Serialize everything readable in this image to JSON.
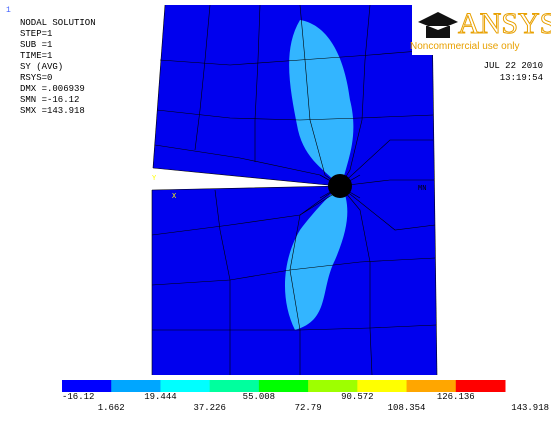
{
  "info": {
    "plot_number": "1",
    "lines": [
      "NODAL SOLUTION",
      "STEP=1",
      "SUB =1",
      "TIME=1",
      "SY       (AVG)",
      "RSYS=0",
      "DMX =.006939",
      "SMN =-16.12",
      "SMX =143.918"
    ]
  },
  "logo": {
    "brand": "ANSYS",
    "note": "Noncommercial use only"
  },
  "timestamp": {
    "date": "JUL 22 2010",
    "time": "13:19:54"
  },
  "markers": {
    "min": "MN",
    "y_axis": "Y",
    "x_axis": "X"
  },
  "legend": {
    "colors": [
      "#0000ff",
      "#00a6ff",
      "#00ffff",
      "#00ff9e",
      "#00ff00",
      "#9eff00",
      "#ffff00",
      "#ffa600",
      "#ff0000"
    ],
    "labels": [
      "-16.12",
      "1.662",
      "19.444",
      "37.226",
      "55.008",
      "72.79",
      "90.572",
      "108.354",
      "126.136",
      "143.918"
    ]
  }
}
